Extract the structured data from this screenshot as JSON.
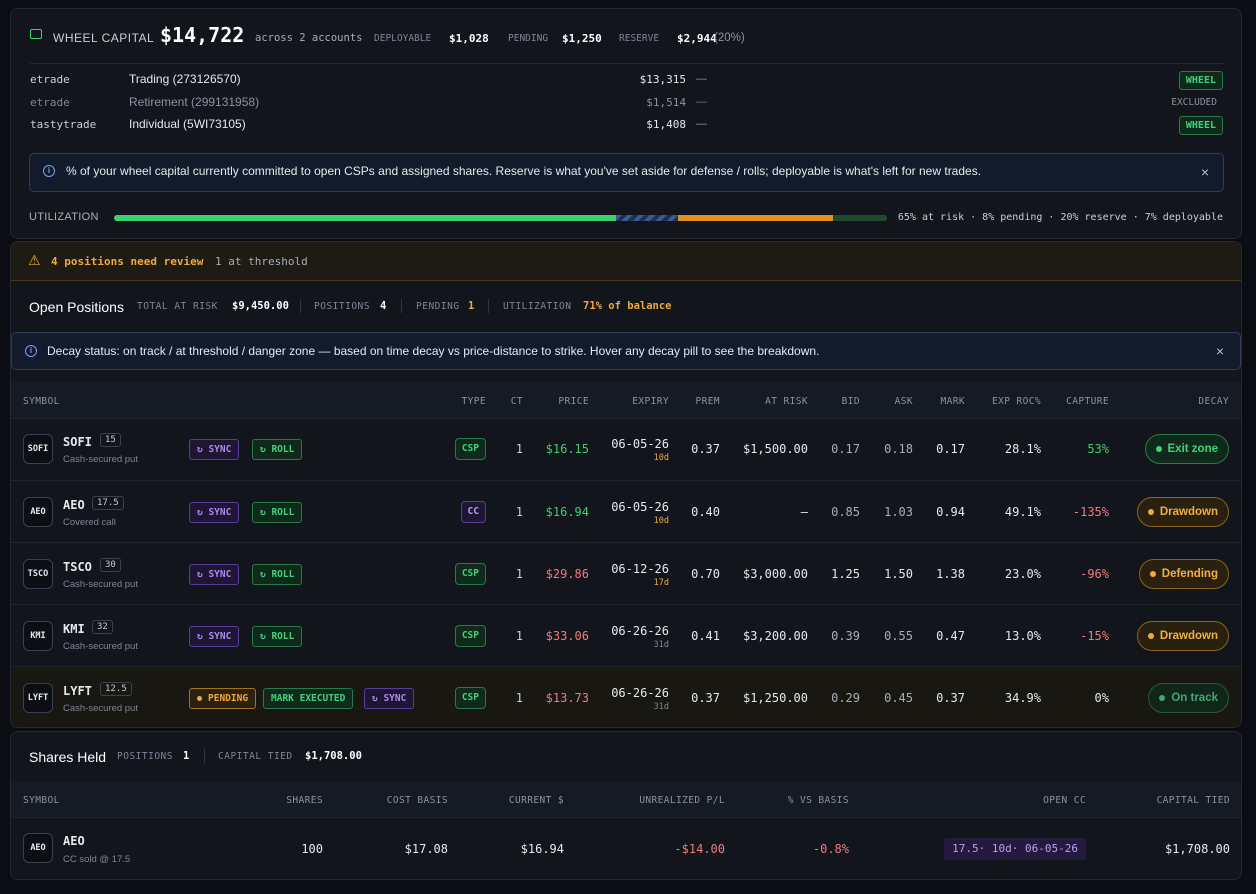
{
  "capital": {
    "title": "WHEEL CAPITAL",
    "total": "$14,722",
    "across": "across 2 accounts",
    "deployable_label": "DEPLOYABLE",
    "deployable": "$1,028",
    "pending_label": "PENDING",
    "pending": "$1,250",
    "reserve_label": "RESERVE",
    "reserve": "$2,944",
    "reserve_pct": "(20%)",
    "accounts": [
      {
        "broker": "etrade",
        "name": "Trading (273126570)",
        "balance": "$13,315",
        "dash": "—",
        "badge": "WHEEL",
        "excluded": false
      },
      {
        "broker": "etrade",
        "name": "Retirement (299131958)",
        "balance": "$1,514",
        "dash": "—",
        "badge": "EXCLUDED",
        "excluded": true
      },
      {
        "broker": "tastytrade",
        "name": "Individual (5WI73105)",
        "balance": "$1,408",
        "dash": "—",
        "badge": "WHEEL",
        "excluded": false
      }
    ],
    "info_text": "% of your wheel capital currently committed to open CSPs and assigned shares. Reserve is what you've set aside for defense / rolls; deployable is what's left for new trades.",
    "utilization_label": "UTILIZATION",
    "utilization_summary": "65% at risk · 8% pending · 20% reserve · 7% deployable",
    "utilization": {
      "at_risk": 65,
      "pending": 8,
      "reserve": 20,
      "deployable": 7
    },
    "colors": {
      "at_risk": "#3ecf6e",
      "reserve": "#e0901f",
      "deployable": "#1f4a32"
    }
  },
  "alert": {
    "text": "4 positions need review",
    "sub": "1 at threshold"
  },
  "open_positions": {
    "title": "Open Positions",
    "stats": {
      "risk_label": "TOTAL AT RISK",
      "risk": "$9,450.00",
      "positions_label": "POSITIONS",
      "positions": "4",
      "pending_label": "PENDING",
      "pending": "1",
      "util_label": "UTILIZATION",
      "util": "71% of balance"
    },
    "info_text": "Decay status: on track / at threshold / danger zone — based on time decay vs price-distance to strike. Hover any decay pill to see the breakdown.",
    "headers": {
      "symbol": "SYMBOL",
      "type": "TYPE",
      "ct": "CT",
      "price": "PRICE",
      "expiry": "EXPIRY",
      "prem": "PREM",
      "at_risk": "AT RISK",
      "bid": "BID",
      "ask": "ASK",
      "mark": "MARK",
      "exp_roc": "EXP ROC%",
      "capture": "CAPTURE",
      "decay": "DECAY"
    },
    "rows": [
      {
        "icon": "SOFI",
        "ticker": "SOFI",
        "strike": "15",
        "sub": "Cash-secured put",
        "btn1": "↻ SYNC",
        "btn2": "↻ ROLL",
        "type": "CSP",
        "ct": "1",
        "price": "$16.15",
        "expiry": "06-05-26",
        "dte": "10d",
        "prem": "0.37",
        "at_risk": "$1,500.00",
        "bid": "0.17",
        "ask": "0.18",
        "mark": "0.17",
        "exp_roc": "28.1%",
        "capture": "53%",
        "decay": "Exit zone"
      },
      {
        "icon": "AEO",
        "ticker": "AEO",
        "strike": "17.5",
        "sub": "Covered call",
        "btn1": "↻ SYNC",
        "btn2": "↻ ROLL",
        "type": "CC",
        "ct": "1",
        "price": "$16.94",
        "expiry": "06-05-26",
        "dte": "10d",
        "prem": "0.40",
        "at_risk": "—",
        "bid": "0.85",
        "ask": "1.03",
        "mark": "0.94",
        "exp_roc": "49.1%",
        "capture": "-135%",
        "decay": "Drawdown"
      },
      {
        "icon": "TSCO",
        "ticker": "TSCO",
        "strike": "30",
        "sub": "Cash-secured put",
        "btn1": "↻ SYNC",
        "btn2": "↻ ROLL",
        "type": "CSP",
        "ct": "1",
        "price": "$29.86",
        "expiry": "06-12-26",
        "dte": "17d",
        "prem": "0.70",
        "at_risk": "$3,000.00",
        "bid": "1.25",
        "ask": "1.50",
        "mark": "1.38",
        "exp_roc": "23.0%",
        "capture": "-96%",
        "decay": "Defending"
      },
      {
        "icon": "KMI",
        "ticker": "KMI",
        "strike": "32",
        "sub": "Cash-secured put",
        "btn1": "↻ SYNC",
        "btn2": "↻ ROLL",
        "type": "CSP",
        "ct": "1",
        "price": "$33.06",
        "expiry": "06-26-26",
        "dte": "31d",
        "prem": "0.41",
        "at_risk": "$3,200.00",
        "bid": "0.39",
        "ask": "0.55",
        "mark": "0.47",
        "exp_roc": "13.0%",
        "capture": "-15%",
        "decay": "Drawdown"
      },
      {
        "icon": "LYFT",
        "ticker": "LYFT",
        "strike": "12.5",
        "sub": "Cash-secured put",
        "btn1": "PENDING",
        "btn2": "MARK EXECUTED",
        "btn3": "↻ SYNC",
        "type": "CSP",
        "ct": "1",
        "price": "$13.73",
        "expiry": "06-26-26",
        "dte": "31d",
        "prem": "0.37",
        "at_risk": "$1,250.00",
        "bid": "0.29",
        "ask": "0.45",
        "mark": "0.37",
        "exp_roc": "34.9%",
        "capture": "0%",
        "decay": "On track"
      }
    ]
  },
  "shares": {
    "title": "Shares Held",
    "positions_label": "POSITIONS",
    "positions": "1",
    "capital_label": "CAPITAL TIED",
    "capital": "$1,708.00",
    "headers": {
      "symbol": "SYMBOL",
      "shares": "SHARES",
      "cost_basis": "COST BASIS",
      "current": "CURRENT $",
      "unrealized": "UNREALIZED P/L",
      "vs_basis": "% VS BASIS",
      "open_cc": "OPEN CC",
      "capital_tied": "CAPITAL TIED"
    },
    "rows": [
      {
        "icon": "AEO",
        "ticker": "AEO",
        "sub": "CC sold @ 17.5",
        "shares": "100",
        "cost_basis": "$17.08",
        "current": "$16.94",
        "unrealized": "-$14.00",
        "vs_basis": "-0.8%",
        "open_cc": "17.5· 10d· 06-05-26",
        "capital_tied": "$1,708.00"
      }
    ]
  }
}
